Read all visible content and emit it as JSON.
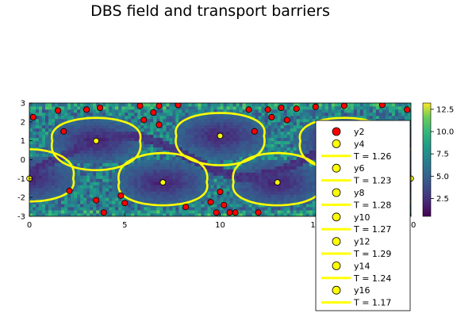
{
  "chart_data": {
    "type": "heatmap",
    "title": "DBS field and transport barriers",
    "xlim": [
      0,
      20
    ],
    "ylim": [
      -3,
      3
    ],
    "x_ticks": [
      "0",
      "5",
      "10",
      "15",
      "20"
    ],
    "y_ticks": [
      "3",
      "2",
      "1",
      "0",
      "-1",
      "-2",
      "-3"
    ],
    "colorbar": {
      "range": [
        0.5,
        13.2
      ],
      "colormap": "viridis",
      "ticks": [
        "2.5",
        "5.0",
        "7.5",
        "10.0",
        "12.5"
      ]
    },
    "heatmap_description": "chaotic sea of high values with low-valued island cores",
    "island_centers_o_points": [
      {
        "x": 3.5,
        "y": 1.0
      },
      {
        "x": 10.0,
        "y": 1.26
      },
      {
        "x": 16.5,
        "y": 1.0
      },
      {
        "x": 0.0,
        "y": -1.0
      },
      {
        "x": 7.0,
        "y": -1.2
      },
      {
        "x": 13.0,
        "y": -1.2
      },
      {
        "x": 20.0,
        "y": -1.0
      }
    ],
    "legend": {
      "placement": "bottom-right",
      "entries": [
        {
          "label": "y2",
          "kind": "marker",
          "color": "#ff0000"
        },
        {
          "label": "y4",
          "kind": "marker",
          "color": "#ffff00"
        },
        {
          "label": "T = 1.26",
          "kind": "line",
          "color": "#ffff00"
        },
        {
          "label": "y6",
          "kind": "marker",
          "color": "#ffff00"
        },
        {
          "label": "T = 1.23",
          "kind": "line",
          "color": "#ffff00"
        },
        {
          "label": "y8",
          "kind": "marker",
          "color": "#ffff00"
        },
        {
          "label": "T = 1.28",
          "kind": "line",
          "color": "#ffff00"
        },
        {
          "label": "y10",
          "kind": "marker",
          "color": "#ffff00"
        },
        {
          "label": "T = 1.27",
          "kind": "line",
          "color": "#ffff00"
        },
        {
          "label": "y12",
          "kind": "marker",
          "color": "#ffff00"
        },
        {
          "label": "T = 1.29",
          "kind": "line",
          "color": "#ffff00"
        },
        {
          "label": "y14",
          "kind": "marker",
          "color": "#ffff00"
        },
        {
          "label": "T = 1.24",
          "kind": "line",
          "color": "#ffff00"
        },
        {
          "label": "y16",
          "kind": "marker",
          "color": "#ffff00"
        },
        {
          "label": "T = 1.17",
          "kind": "line",
          "color": "#ffff00"
        }
      ]
    },
    "series": [
      {
        "name": "y2",
        "color": "#ff0000",
        "x": [
          0.2,
          1.5,
          1.8,
          2.1,
          3.0,
          3.5,
          3.7,
          3.9,
          4.8,
          5.0,
          5.8,
          6.0,
          6.5,
          6.8,
          6.8,
          7.8,
          8.2,
          9.5,
          9.8,
          10.0,
          10.2,
          10.5,
          10.8,
          11.5,
          11.8,
          12.0,
          12.5,
          12.7,
          13.2,
          13.5,
          14.0,
          15.0,
          16.5,
          18.5,
          19.8
        ],
        "y": [
          2.25,
          2.6,
          1.5,
          -1.65,
          2.65,
          -2.15,
          2.75,
          -2.8,
          -1.9,
          -2.3,
          2.85,
          2.1,
          2.5,
          2.85,
          1.85,
          2.9,
          -2.5,
          -2.25,
          -2.8,
          -1.7,
          -2.4,
          -2.8,
          -2.8,
          2.65,
          1.5,
          -2.8,
          2.65,
          2.25,
          2.75,
          2.1,
          2.7,
          2.8,
          2.85,
          2.9,
          2.65
        ]
      }
    ]
  }
}
